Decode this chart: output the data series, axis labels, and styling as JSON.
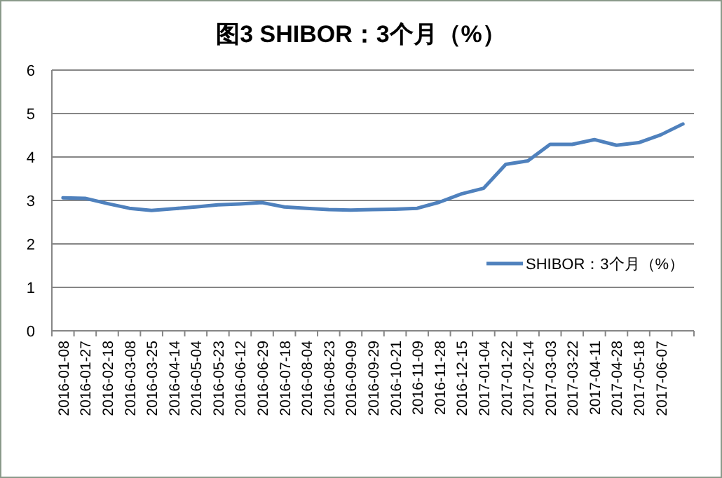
{
  "chart_data": {
    "type": "line",
    "title": "图3  SHIBOR：3个月（%）",
    "categories": [
      "2016-01-08",
      "2016-01-27",
      "2016-02-18",
      "2016-03-08",
      "2016-03-25",
      "2016-04-14",
      "2016-05-04",
      "2016-05-23",
      "2016-06-12",
      "2016-06-29",
      "2016-07-18",
      "2016-08-04",
      "2016-08-23",
      "2016-09-09",
      "2016-09-29",
      "2016-10-21",
      "2016-11-09",
      "2016-11-28",
      "2016-12-15",
      "2017-01-04",
      "2017-01-22",
      "2017-02-14",
      "2017-03-03",
      "2017-03-22",
      "2017-04-11",
      "2017-04-28",
      "2017-05-18",
      "2017-06-07",
      null
    ],
    "series": [
      {
        "name": "SHIBOR：3个月（%）",
        "color": "#4f81bd",
        "values": [
          3.06,
          3.05,
          2.93,
          2.82,
          2.77,
          2.81,
          2.85,
          2.9,
          2.92,
          2.95,
          2.85,
          2.82,
          2.79,
          2.78,
          2.79,
          2.8,
          2.82,
          2.96,
          3.15,
          3.28,
          3.83,
          3.91,
          4.29,
          4.29,
          4.4,
          4.27,
          4.33,
          4.51,
          4.76
        ]
      }
    ],
    "ylim": [
      0,
      6
    ],
    "yticks": [
      0,
      1,
      2,
      3,
      4,
      5,
      6
    ],
    "grid": "y",
    "legend": "right",
    "marker": "none",
    "line_style": "solid"
  }
}
